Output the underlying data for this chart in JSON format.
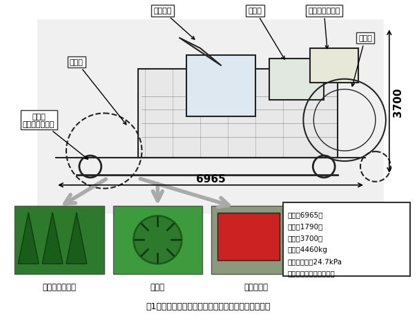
{
  "title": "図1　自走式収穫機の側面図と収穫部アタッチメント",
  "bg_color": "#ffffff",
  "fig_width": 6.04,
  "fig_height": 4.6,
  "labels_top": [
    "シュート",
    "ホッパ",
    "ネット供給装置",
    "成形室",
    "収穫部",
    "収穫部\nアタッチメント"
  ],
  "spec_box_text": "全長：6965㎜\n全幅：1790㎜\n全高：3700㎜\n質量：4460kg\n平均接地圧：24.7kPa\n（トウモロコシ収穫時）",
  "dim_horizontal": "6965",
  "dim_vertical": "3700",
  "photo_labels": [
    "トウモロコシ用",
    "牧草用",
    "飼料イネ用"
  ],
  "arrow_color": "#aaaaaa",
  "box_border_color": "#333333",
  "text_color": "#000000",
  "machine_color": "#222222",
  "dimension_color": "#000000"
}
